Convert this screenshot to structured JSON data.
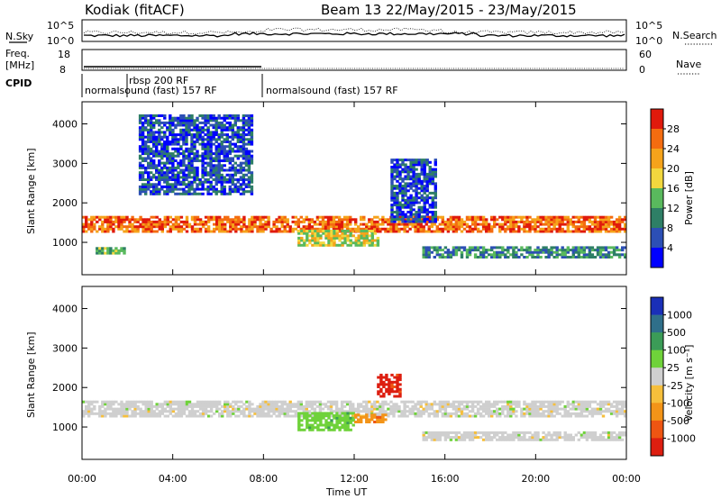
{
  "header": {
    "site": "Kodiak (fitACF)",
    "beam": "Beam 13 22/May/2015 - 23/May/2015"
  },
  "aux_panels": {
    "nsky_label": "N.Sky",
    "nsky_ticks": [
      "10^5",
      "10^0"
    ],
    "nsearch_label": "N.Search",
    "nsearch_ticks": [
      "10^5",
      "10^0"
    ],
    "freq_label_1": "Freq.",
    "freq_label_2": "[MHz]",
    "freq_ticks": [
      "18",
      "8"
    ],
    "nave_label": "Nave",
    "nave_ticks": [
      "60",
      "0"
    ],
    "cpid_label": "CPID",
    "cpid_entries": [
      {
        "text": "normalsound (fast) 157 RF",
        "start_hour": 0
      },
      {
        "text": "rbsp 200 RF",
        "start_hour": 2
      },
      {
        "text": "normalsound (fast) 157 RF",
        "start_hour": 8
      }
    ]
  },
  "chart_data": [
    {
      "type": "heatmap",
      "name": "power",
      "ylabel": "Slant Range [km]",
      "xlabel": "",
      "xlim": [
        0,
        24
      ],
      "ylim": [
        180,
        4560
      ],
      "yticks": [
        "1000",
        "2000",
        "3000",
        "4000"
      ],
      "colorbar_label": "Power [dB]",
      "colorbar_ticks": [
        "4",
        "8",
        "12",
        "16",
        "20",
        "24",
        "28"
      ],
      "colorbar_colors": [
        "#0000ff",
        "#2c4fb5",
        "#2e7f66",
        "#59b95d",
        "#f2d73e",
        "#f5a31b",
        "#f46c10",
        "#e01a0c"
      ],
      "bands": [
        {
          "t0": 0,
          "t1": 24,
          "r0": 1250,
          "r1": 1650,
          "level": 6
        },
        {
          "t0": 0.6,
          "t1": 1.9,
          "r0": 700,
          "r1": 880,
          "level": 3
        },
        {
          "t0": 9.5,
          "t1": 13,
          "r0": 900,
          "r1": 1300,
          "level": 4
        },
        {
          "t0": 13.6,
          "t1": 15.6,
          "r0": 1500,
          "r1": 3100,
          "level": 1
        },
        {
          "t0": 15,
          "t1": 24,
          "r0": 600,
          "r1": 860,
          "level": 2
        },
        {
          "t0": 2.5,
          "t1": 7.5,
          "r0": 2200,
          "r1": 4200,
          "level": 1
        }
      ]
    },
    {
      "type": "heatmap",
      "name": "velocity",
      "ylabel": "Slant Range [km]",
      "xlabel": "Time UT",
      "xlim": [
        0,
        24
      ],
      "ylim": [
        180,
        4560
      ],
      "yticks": [
        "1000",
        "2000",
        "3000",
        "4000"
      ],
      "xticks": [
        "00:00",
        "04:00",
        "08:00",
        "12:00",
        "16:00",
        "20:00",
        "00:00"
      ],
      "colorbar_label": "Velocity [m s⁻¹]",
      "colorbar_ticks": [
        "1000",
        "500",
        "100",
        "25",
        "-25",
        "-100",
        "-500",
        "-1000"
      ],
      "colorbar_colors": [
        "#1a2fb8",
        "#2f6f8a",
        "#3b9c57",
        "#6fd23a",
        "#cfcfcf",
        "#f6bf3b",
        "#f39418",
        "#ee5512",
        "#dd1e10"
      ],
      "bands": [
        {
          "t0": 0,
          "t1": 24,
          "r0": 1250,
          "r1": 1650,
          "vel": 0
        },
        {
          "t0": 9.5,
          "t1": 12,
          "r0": 900,
          "r1": 1350,
          "vel": 150
        },
        {
          "t0": 12,
          "t1": 13.4,
          "r0": 1100,
          "r1": 1300,
          "vel": -150
        },
        {
          "t0": 13,
          "t1": 14,
          "r0": 1750,
          "r1": 2300,
          "vel": -800
        },
        {
          "t0": 15,
          "t1": 24,
          "r0": 650,
          "r1": 860,
          "vel": 0
        }
      ]
    }
  ]
}
